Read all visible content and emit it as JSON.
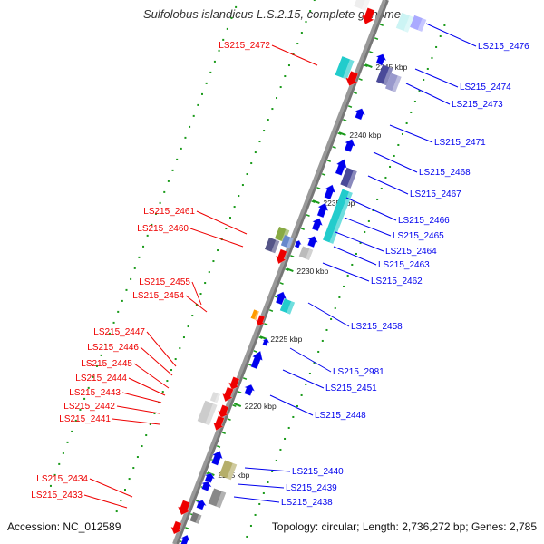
{
  "title": "Sulfolobus islandicus L.S.2.15, complete genome",
  "footer": {
    "accession": "Accession: NC_012589",
    "topology": "Topology: circular; Length: 2,736,272 bp; Genes: 2,785"
  },
  "colors": {
    "forward_label": "#0000ee",
    "reverse_label": "#ee0000",
    "backbone": "#999999",
    "tick": "#1a9a1a",
    "gene_blue": "#0000ee",
    "gene_red": "#ee0000",
    "gene_cyan": "#22cccc",
    "gene_gray": "#bbbbbb",
    "gene_olive": "#b5ae6a",
    "gene_navy": "#4a4a99",
    "gene_orange": "#ff9900"
  },
  "kbp_ticks": [
    "2215 kbp",
    "2220 kbp",
    "2225 kbp",
    "2230 kbp",
    "2235 kbp",
    "2240 kbp",
    "2245 kbp"
  ],
  "forward_genes": [
    "LS215_2476",
    "LS215_2474",
    "LS215_2473",
    "LS215_2471",
    "LS215_2468",
    "LS215_2467",
    "LS215_2466",
    "LS215_2465",
    "LS215_2464",
    "LS215_2463",
    "LS215_2462",
    "LS215_2458",
    "LS215_2981",
    "LS215_2451",
    "LS215_2448",
    "LS215_2440",
    "LS215_2439",
    "LS215_2438"
  ],
  "reverse_genes": [
    "LS215_2472",
    "LS215_2461",
    "LS215_2460",
    "LS215_2455",
    "LS215_2454",
    "LS215_2447",
    "LS215_2446",
    "LS215_2445",
    "LS215_2444",
    "LS215_2443",
    "LS215_2442",
    "LS215_2441",
    "LS215_2434",
    "LS215_2433"
  ]
}
